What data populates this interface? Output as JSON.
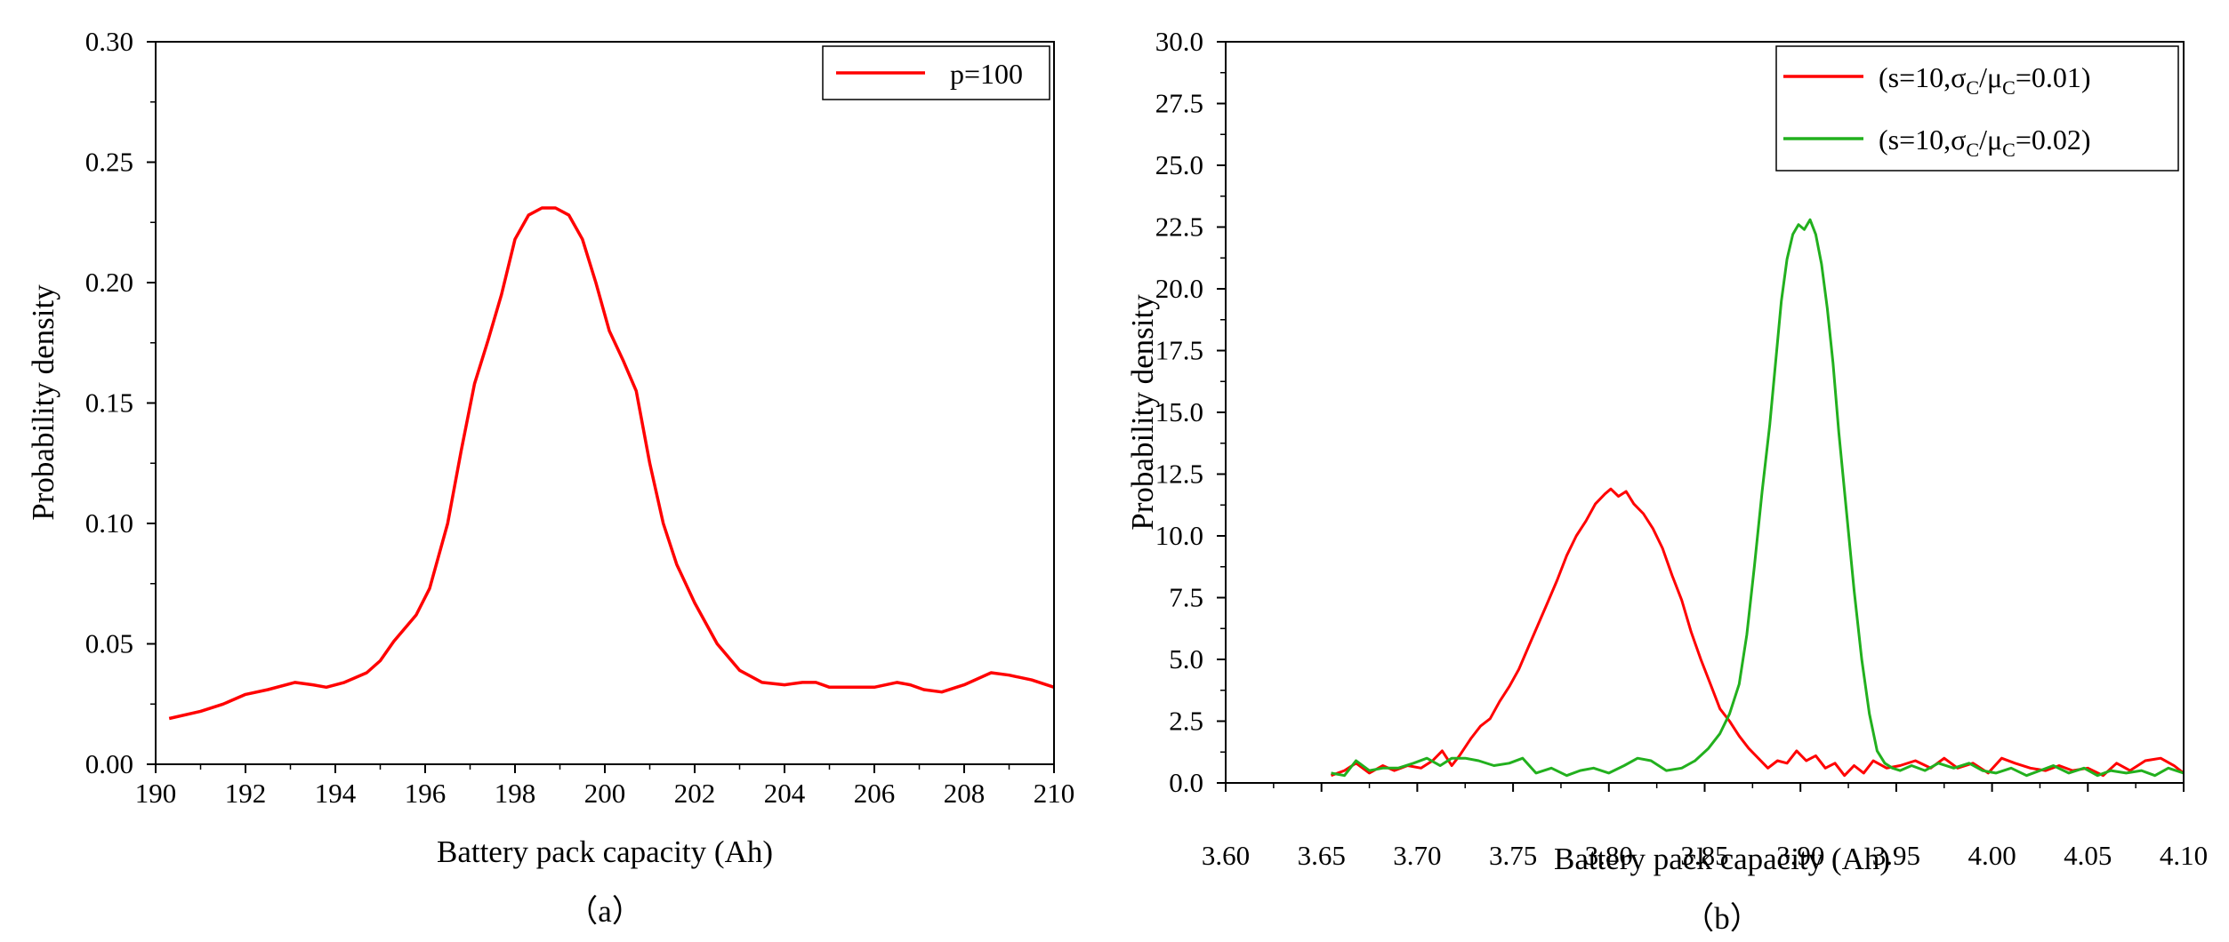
{
  "chart_data": [
    {
      "type": "line",
      "caption": "（a）",
      "xlabel": "Battery pack capacity (Ah)",
      "ylabel": "Probability density",
      "xlim": [
        190,
        210
      ],
      "ylim": [
        0,
        0.3
      ],
      "xticks": [
        "190",
        "192",
        "194",
        "196",
        "198",
        "200",
        "202",
        "204",
        "206",
        "208",
        "210"
      ],
      "yticks": [
        "0.00",
        "0.05",
        "0.10",
        "0.15",
        "0.20",
        "0.25",
        "0.30"
      ],
      "legend_position": "top-right",
      "series": [
        {
          "name": "p=100",
          "color": "#ff0000",
          "x": [
            190.3,
            191.0,
            191.5,
            192.0,
            192.5,
            193.1,
            193.5,
            193.8,
            194.2,
            194.7,
            195.0,
            195.3,
            195.8,
            196.1,
            196.5,
            196.8,
            197.1,
            197.4,
            197.7,
            198.0,
            198.3,
            198.6,
            198.9,
            199.2,
            199.5,
            199.8,
            200.1,
            200.4,
            200.7,
            201.0,
            201.3,
            201.6,
            202.0,
            202.5,
            203.0,
            203.5,
            204.0,
            204.4,
            204.7,
            205.0,
            205.5,
            206.0,
            206.5,
            206.8,
            207.1,
            207.5,
            208.0,
            208.6,
            209.0,
            209.5,
            210.0
          ],
          "y": [
            0.019,
            0.022,
            0.025,
            0.029,
            0.031,
            0.034,
            0.033,
            0.032,
            0.034,
            0.038,
            0.043,
            0.051,
            0.062,
            0.073,
            0.1,
            0.13,
            0.158,
            0.176,
            0.195,
            0.218,
            0.228,
            0.231,
            0.231,
            0.228,
            0.218,
            0.2,
            0.18,
            0.168,
            0.155,
            0.125,
            0.1,
            0.083,
            0.067,
            0.05,
            0.039,
            0.034,
            0.033,
            0.034,
            0.034,
            0.032,
            0.032,
            0.032,
            0.034,
            0.033,
            0.031,
            0.03,
            0.033,
            0.038,
            0.037,
            0.035,
            0.032
          ]
        }
      ]
    },
    {
      "type": "line",
      "caption": "（b）",
      "xlabel": "Battery pack capacity (Ah)",
      "ylabel": "Probability density",
      "xlim": [
        3.6,
        4.1
      ],
      "ylim": [
        0,
        30
      ],
      "xticks": [
        "3.60",
        "3.65",
        "3.70",
        "3.75",
        "3.80",
        "3.85",
        "3.90",
        "3.95",
        "4.00",
        "4.05",
        "4.10"
      ],
      "yticks": [
        "0.0",
        "2.5",
        "5.0",
        "7.5",
        "10.0",
        "12.5",
        "15.0",
        "17.5",
        "20.0",
        "22.5",
        "25.0",
        "27.5",
        "30.0"
      ],
      "legend_position": "top-right",
      "series": [
        {
          "name": "s=10, σC/μC=0.01",
          "legend": {
            "pre": "(s=10,σ",
            "sub1": "C",
            "mid": "/μ",
            "sub2": "C",
            "post": "=0.01)"
          },
          "color": "#ff0000",
          "x": [
            3.655,
            3.662,
            3.668,
            3.675,
            3.682,
            3.688,
            3.695,
            3.702,
            3.708,
            3.713,
            3.718,
            3.722,
            3.728,
            3.733,
            3.738,
            3.743,
            3.748,
            3.753,
            3.758,
            3.763,
            3.768,
            3.773,
            3.778,
            3.783,
            3.788,
            3.793,
            3.798,
            3.801,
            3.805,
            3.809,
            3.813,
            3.818,
            3.823,
            3.828,
            3.833,
            3.838,
            3.843,
            3.848,
            3.853,
            3.858,
            3.863,
            3.868,
            3.873,
            3.878,
            3.883,
            3.888,
            3.893,
            3.898,
            3.903,
            3.908,
            3.913,
            3.918,
            3.923,
            3.928,
            3.933,
            3.938,
            3.945,
            3.952,
            3.96,
            3.968,
            3.975,
            3.982,
            3.99,
            3.998,
            4.005,
            4.012,
            4.02,
            4.028,
            4.035,
            4.042,
            4.05,
            4.058,
            4.065,
            4.072,
            4.08,
            4.088,
            4.095,
            4.1
          ],
          "y": [
            0.3,
            0.5,
            0.8,
            0.4,
            0.7,
            0.5,
            0.7,
            0.6,
            0.9,
            1.3,
            0.7,
            1.1,
            1.8,
            2.3,
            2.6,
            3.3,
            3.9,
            4.6,
            5.5,
            6.4,
            7.3,
            8.2,
            9.2,
            10.0,
            10.6,
            11.3,
            11.7,
            11.9,
            11.6,
            11.8,
            11.3,
            10.9,
            10.3,
            9.5,
            8.4,
            7.4,
            6.1,
            5.0,
            4.0,
            3.0,
            2.5,
            1.9,
            1.4,
            1.0,
            0.6,
            0.9,
            0.8,
            1.3,
            0.9,
            1.1,
            0.6,
            0.8,
            0.3,
            0.7,
            0.4,
            0.9,
            0.6,
            0.7,
            0.9,
            0.6,
            1.0,
            0.6,
            0.8,
            0.4,
            1.0,
            0.8,
            0.6,
            0.5,
            0.7,
            0.5,
            0.6,
            0.3,
            0.8,
            0.5,
            0.9,
            1.0,
            0.7,
            0.4
          ]
        },
        {
          "name": "s=10, σC/μC=0.02",
          "legend": {
            "pre": "(s=10,σ",
            "sub1": "C",
            "mid": "/μ",
            "sub2": "C",
            "post": "=0.02)"
          },
          "color": "#22b01e",
          "x": [
            3.655,
            3.662,
            3.668,
            3.675,
            3.682,
            3.69,
            3.698,
            3.705,
            3.712,
            3.718,
            3.725,
            3.732,
            3.74,
            3.748,
            3.755,
            3.762,
            3.77,
            3.778,
            3.785,
            3.792,
            3.8,
            3.808,
            3.815,
            3.822,
            3.83,
            3.838,
            3.845,
            3.852,
            3.858,
            3.863,
            3.868,
            3.872,
            3.876,
            3.88,
            3.884,
            3.887,
            3.89,
            3.893,
            3.896,
            3.899,
            3.902,
            3.905,
            3.908,
            3.911,
            3.914,
            3.917,
            3.92,
            3.924,
            3.928,
            3.932,
            3.936,
            3.94,
            3.944,
            3.948,
            3.952,
            3.958,
            3.965,
            3.972,
            3.98,
            3.988,
            3.995,
            4.002,
            4.01,
            4.018,
            4.025,
            4.032,
            4.04,
            4.048,
            4.055,
            4.062,
            4.07,
            4.078,
            4.085,
            4.092,
            4.1
          ],
          "y": [
            0.4,
            0.3,
            0.9,
            0.5,
            0.6,
            0.6,
            0.8,
            1.0,
            0.7,
            1.0,
            1.0,
            0.9,
            0.7,
            0.8,
            1.0,
            0.4,
            0.6,
            0.3,
            0.5,
            0.6,
            0.4,
            0.7,
            1.0,
            0.9,
            0.5,
            0.6,
            0.9,
            1.4,
            2.0,
            2.8,
            4.0,
            6.0,
            8.8,
            11.8,
            14.5,
            17.0,
            19.5,
            21.2,
            22.2,
            22.6,
            22.4,
            22.8,
            22.2,
            21.0,
            19.2,
            17.0,
            14.2,
            11.0,
            7.8,
            5.0,
            2.8,
            1.3,
            0.8,
            0.6,
            0.5,
            0.7,
            0.5,
            0.8,
            0.6,
            0.8,
            0.5,
            0.4,
            0.6,
            0.3,
            0.5,
            0.7,
            0.4,
            0.6,
            0.3,
            0.5,
            0.4,
            0.5,
            0.3,
            0.6,
            0.4
          ]
        }
      ]
    }
  ]
}
